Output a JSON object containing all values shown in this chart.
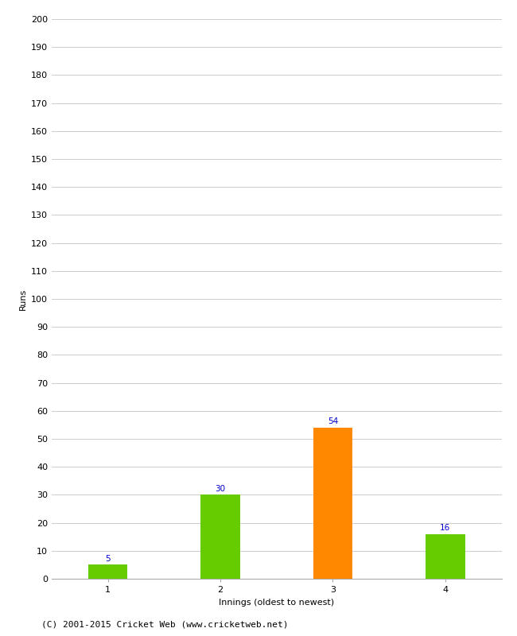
{
  "categories": [
    "1",
    "2",
    "3",
    "4"
  ],
  "values": [
    5,
    30,
    54,
    16
  ],
  "bar_colors": [
    "#66cc00",
    "#66cc00",
    "#ff8800",
    "#66cc00"
  ],
  "ylabel": "Runs",
  "xlabel": "Innings (oldest to newest)",
  "ylim": [
    0,
    200
  ],
  "yticks": [
    0,
    10,
    20,
    30,
    40,
    50,
    60,
    70,
    80,
    90,
    100,
    110,
    120,
    130,
    140,
    150,
    160,
    170,
    180,
    190,
    200
  ],
  "label_color": "#0000cc",
  "label_fontsize": 7.5,
  "axis_label_fontsize": 8,
  "tick_fontsize": 8,
  "footer": "(C) 2001-2015 Cricket Web (www.cricketweb.net)",
  "footer_fontsize": 8,
  "background_color": "#ffffff",
  "grid_color": "#cccccc",
  "bar_width": 0.35,
  "bar_edge_color": "none"
}
